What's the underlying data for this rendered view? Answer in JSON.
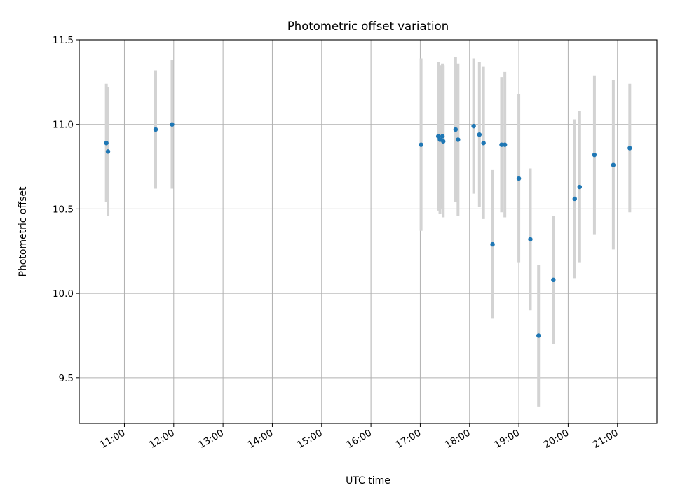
{
  "chart_data": {
    "type": "scatter",
    "title": "Photometric offset variation",
    "xlabel": "UTC time",
    "ylabel": "Photometric offset",
    "x_format": "time HH:MM",
    "xlim": [
      "10:05",
      "21:48"
    ],
    "ylim": [
      9.23,
      11.5
    ],
    "x_ticks": [
      "11:00",
      "12:00",
      "13:00",
      "14:00",
      "15:00",
      "16:00",
      "17:00",
      "18:00",
      "19:00",
      "20:00",
      "21:00"
    ],
    "y_ticks": [
      9.5,
      10.0,
      10.5,
      11.0,
      11.5
    ],
    "y_tick_labels": [
      "9.5",
      "10.0",
      "10.5",
      "11.0",
      "11.5"
    ],
    "grid": true,
    "point_color": "#1f77b4",
    "errorbar_color": "#d3d3d3",
    "points": [
      {
        "x": "10:38",
        "y": 10.89,
        "yerr": 0.35
      },
      {
        "x": "10:40",
        "y": 10.84,
        "yerr": 0.38
      },
      {
        "x": "11:38",
        "y": 10.97,
        "yerr": 0.35
      },
      {
        "x": "11:58",
        "y": 11.0,
        "yerr": 0.38
      },
      {
        "x": "17:01",
        "y": 10.88,
        "yerr": 0.51
      },
      {
        "x": "17:22",
        "y": 10.93,
        "yerr": 0.44
      },
      {
        "x": "17:24",
        "y": 10.91,
        "yerr": 0.44
      },
      {
        "x": "17:27",
        "y": 10.93,
        "yerr": 0.43
      },
      {
        "x": "17:28",
        "y": 10.9,
        "yerr": 0.45
      },
      {
        "x": "17:43",
        "y": 10.97,
        "yerr": 0.43
      },
      {
        "x": "17:46",
        "y": 10.91,
        "yerr": 0.45
      },
      {
        "x": "18:05",
        "y": 10.99,
        "yerr": 0.4
      },
      {
        "x": "18:12",
        "y": 10.94,
        "yerr": 0.43
      },
      {
        "x": "18:17",
        "y": 10.89,
        "yerr": 0.45
      },
      {
        "x": "18:28",
        "y": 10.29,
        "yerr": 0.44
      },
      {
        "x": "18:39",
        "y": 10.88,
        "yerr": 0.4
      },
      {
        "x": "18:43",
        "y": 10.88,
        "yerr": 0.43
      },
      {
        "x": "19:00",
        "y": 10.68,
        "yerr": 0.5
      },
      {
        "x": "19:14",
        "y": 10.32,
        "yerr": 0.42
      },
      {
        "x": "19:24",
        "y": 9.75,
        "yerr": 0.42
      },
      {
        "x": "19:42",
        "y": 10.08,
        "yerr": 0.38
      },
      {
        "x": "20:08",
        "y": 10.56,
        "yerr": 0.47
      },
      {
        "x": "20:14",
        "y": 10.63,
        "yerr": 0.45
      },
      {
        "x": "20:32",
        "y": 10.82,
        "yerr": 0.47
      },
      {
        "x": "20:55",
        "y": 10.76,
        "yerr": 0.5
      },
      {
        "x": "21:15",
        "y": 10.86,
        "yerr": 0.38
      }
    ]
  }
}
